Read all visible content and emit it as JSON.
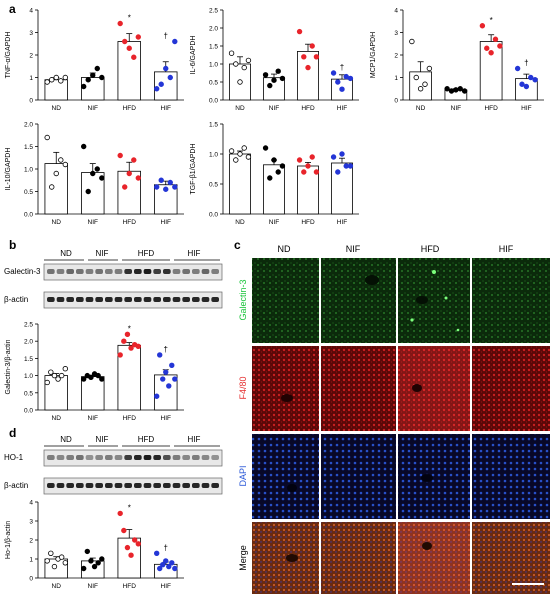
{
  "panels": {
    "a": "a",
    "b": "b",
    "c": "c",
    "d": "d"
  },
  "groups": [
    "ND",
    "NIF",
    "HFD",
    "HIF"
  ],
  "colors": {
    "ND": "#ffffff",
    "NIF": "#000000",
    "HFD": "#e8242b",
    "HIF": "#2436d6",
    "green": "#19c43a",
    "red": "#e53030",
    "blue": "#2e5bd8"
  },
  "blot_b": {
    "row1": "Galectin-3",
    "row2": "β-actin"
  },
  "blot_d": {
    "row1": "HO-1",
    "row2": "β-actin"
  },
  "micro": {
    "rows": [
      "Galectin-3",
      "F4/80",
      "DAPI",
      "Merge"
    ]
  },
  "chart_data": [
    {
      "type": "bar",
      "ylabel": "TNF-α/GAPDH",
      "ylim": [
        0,
        4
      ],
      "ticks": [
        0,
        1,
        2,
        3,
        4
      ],
      "categories": [
        "ND",
        "NIF",
        "HFD",
        "HIF"
      ],
      "values": [
        0.9,
        1.0,
        2.6,
        1.25
      ],
      "errors": [
        0.1,
        0.2,
        0.35,
        0.45
      ],
      "marks": [
        "",
        "",
        "*",
        "†"
      ],
      "points": [
        [
          0.8,
          0.9,
          1.0,
          0.85,
          1.0
        ],
        [
          0.6,
          0.9,
          1.1,
          1.4,
          1.0
        ],
        [
          3.4,
          2.6,
          2.3,
          1.9,
          2.8
        ],
        [
          0.5,
          0.7,
          1.4,
          1.0,
          2.6
        ]
      ]
    },
    {
      "type": "bar",
      "ylabel": "IL-6/GAPDH",
      "ylim": [
        0,
        2.5
      ],
      "ticks": [
        0.0,
        0.5,
        1.0,
        1.5,
        2.0,
        2.5
      ],
      "categories": [
        "ND",
        "NIF",
        "HFD",
        "HIF"
      ],
      "values": [
        1.0,
        0.62,
        1.35,
        0.58
      ],
      "errors": [
        0.2,
        0.1,
        0.2,
        0.12
      ],
      "marks": [
        "",
        "",
        "",
        "†"
      ],
      "points": [
        [
          1.3,
          1.0,
          0.5,
          0.9,
          1.1
        ],
        [
          0.7,
          0.4,
          0.55,
          0.8,
          0.6
        ],
        [
          1.9,
          1.2,
          0.9,
          1.5,
          1.2
        ],
        [
          0.75,
          0.5,
          0.3,
          0.65,
          0.6
        ]
      ]
    },
    {
      "type": "bar",
      "ylabel": "MCP1/GAPDH",
      "ylim": [
        0,
        4
      ],
      "ticks": [
        0,
        1,
        2,
        3,
        4
      ],
      "categories": [
        "ND",
        "NIF",
        "HFD",
        "HIF"
      ],
      "values": [
        1.25,
        0.45,
        2.6,
        0.95
      ],
      "errors": [
        0.45,
        0.05,
        0.3,
        0.2
      ],
      "marks": [
        "",
        "",
        "*",
        "†"
      ],
      "points": [
        [
          2.6,
          1.0,
          0.5,
          0.7,
          1.4
        ],
        [
          0.5,
          0.4,
          0.45,
          0.5,
          0.4
        ],
        [
          3.3,
          2.3,
          2.1,
          2.7,
          2.4
        ],
        [
          1.4,
          0.7,
          0.6,
          1.0,
          0.9
        ]
      ]
    },
    {
      "type": "bar",
      "ylabel": "IL-10/GAPDH",
      "ylim": [
        0,
        2.0
      ],
      "ticks": [
        0.0,
        0.5,
        1.0,
        1.5,
        2.0
      ],
      "categories": [
        "ND",
        "NIF",
        "HFD",
        "HIF"
      ],
      "values": [
        1.12,
        0.92,
        0.95,
        0.65
      ],
      "errors": [
        0.25,
        0.2,
        0.2,
        0.08
      ],
      "marks": [
        "",
        "",
        "",
        ""
      ],
      "points": [
        [
          1.7,
          0.6,
          0.9,
          1.2,
          1.1
        ],
        [
          1.5,
          0.5,
          0.9,
          1.0,
          0.8
        ],
        [
          1.3,
          0.6,
          0.9,
          1.2,
          0.8
        ],
        [
          0.6,
          0.75,
          0.55,
          0.7,
          0.6
        ]
      ]
    },
    {
      "type": "bar",
      "ylabel": "TGF-β1/GAPDH",
      "ylim": [
        0,
        1.5
      ],
      "ticks": [
        0.0,
        0.5,
        1.0,
        1.5
      ],
      "categories": [
        "ND",
        "NIF",
        "HFD",
        "HIF"
      ],
      "values": [
        1.0,
        0.82,
        0.8,
        0.85
      ],
      "errors": [
        0.05,
        0.08,
        0.06,
        0.08
      ],
      "marks": [
        "",
        "",
        "",
        ""
      ],
      "points": [
        [
          1.05,
          0.9,
          1.0,
          1.1,
          0.95
        ],
        [
          1.1,
          0.6,
          0.9,
          0.7,
          0.8
        ],
        [
          0.9,
          0.7,
          0.8,
          0.95,
          0.7
        ],
        [
          0.95,
          0.7,
          1.0,
          0.8,
          0.8
        ]
      ]
    },
    {
      "type": "bar",
      "ylabel": "Galectin-3/β-actin",
      "ylim": [
        0,
        2.5
      ],
      "ticks": [
        0.0,
        0.5,
        1.0,
        1.5,
        2.0,
        2.5
      ],
      "categories": [
        "ND",
        "NIF",
        "HFD",
        "HIF"
      ],
      "values": [
        1.0,
        0.97,
        1.88,
        1.02
      ],
      "errors": [
        0.06,
        0.04,
        0.08,
        0.15
      ],
      "marks": [
        "",
        "",
        "*",
        "†"
      ],
      "points": [
        [
          0.8,
          1.1,
          1.0,
          0.9,
          1.0,
          1.2
        ],
        [
          0.9,
          1.0,
          0.95,
          1.05,
          1.0,
          0.9
        ],
        [
          1.6,
          2.0,
          2.2,
          1.8,
          1.9,
          1.85
        ],
        [
          0.4,
          1.6,
          0.9,
          1.1,
          0.7,
          1.3,
          0.9
        ]
      ]
    },
    {
      "type": "bar",
      "ylabel": "Ho-1/β-actin",
      "ylim": [
        0,
        4
      ],
      "ticks": [
        0,
        1,
        2,
        3,
        4
      ],
      "categories": [
        "ND",
        "NIF",
        "HFD",
        "HIF"
      ],
      "values": [
        1.0,
        0.9,
        2.1,
        0.72
      ],
      "errors": [
        0.12,
        0.15,
        0.45,
        0.12
      ],
      "marks": [
        "",
        "",
        "*",
        "†"
      ],
      "points": [
        [
          0.9,
          1.3,
          0.6,
          1.0,
          1.1,
          0.8
        ],
        [
          0.5,
          1.4,
          0.9,
          0.6,
          0.8,
          1.0
        ],
        [
          3.4,
          2.5,
          1.6,
          1.2,
          2.0,
          1.8
        ],
        [
          1.3,
          0.5,
          0.7,
          0.9,
          0.6,
          0.8,
          0.5
        ]
      ]
    }
  ]
}
